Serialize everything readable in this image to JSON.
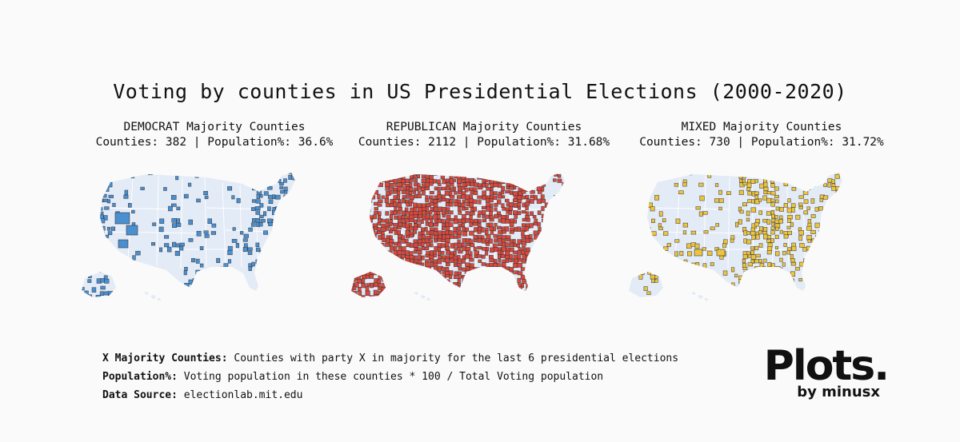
{
  "title": "Voting by counties in US Presidential Elections (2000-2020)",
  "colors": {
    "background": "#fafafa",
    "land": "#e3ebf6",
    "democrat": "#4a8fd0",
    "republican": "#d9483b",
    "mixed": "#ecc43e",
    "county_border": "#33343a"
  },
  "panels": [
    {
      "id": "democrat",
      "heading": "DEMOCRAT Majority Counties",
      "stats": "Counties: 382 | Population%: 36.6%",
      "counties": 382,
      "population_pct": 36.6,
      "color": "#4a8fd0"
    },
    {
      "id": "republican",
      "heading": "REPUBLICAN Majority Counties",
      "stats": "Counties: 2112 | Population%: 31.68%",
      "counties": 2112,
      "population_pct": 31.68,
      "color": "#d9483b"
    },
    {
      "id": "mixed",
      "heading": "MIXED Majority Counties",
      "stats": "Counties: 730 | Population%: 31.72%",
      "counties": 730,
      "population_pct": 31.72,
      "color": "#ecc43e"
    }
  ],
  "notes": [
    {
      "label": "X Majority Counties:",
      "text": " Counties with party X in majority for the last 6 presidential elections"
    },
    {
      "label": "Population%:",
      "text": " Voting population in these counties * 100 / Total Voting population"
    },
    {
      "label": "Data Source:",
      "text": " electionlab.mit.edu"
    }
  ],
  "brand": {
    "name": "Plots.",
    "sub": "by minusx"
  }
}
